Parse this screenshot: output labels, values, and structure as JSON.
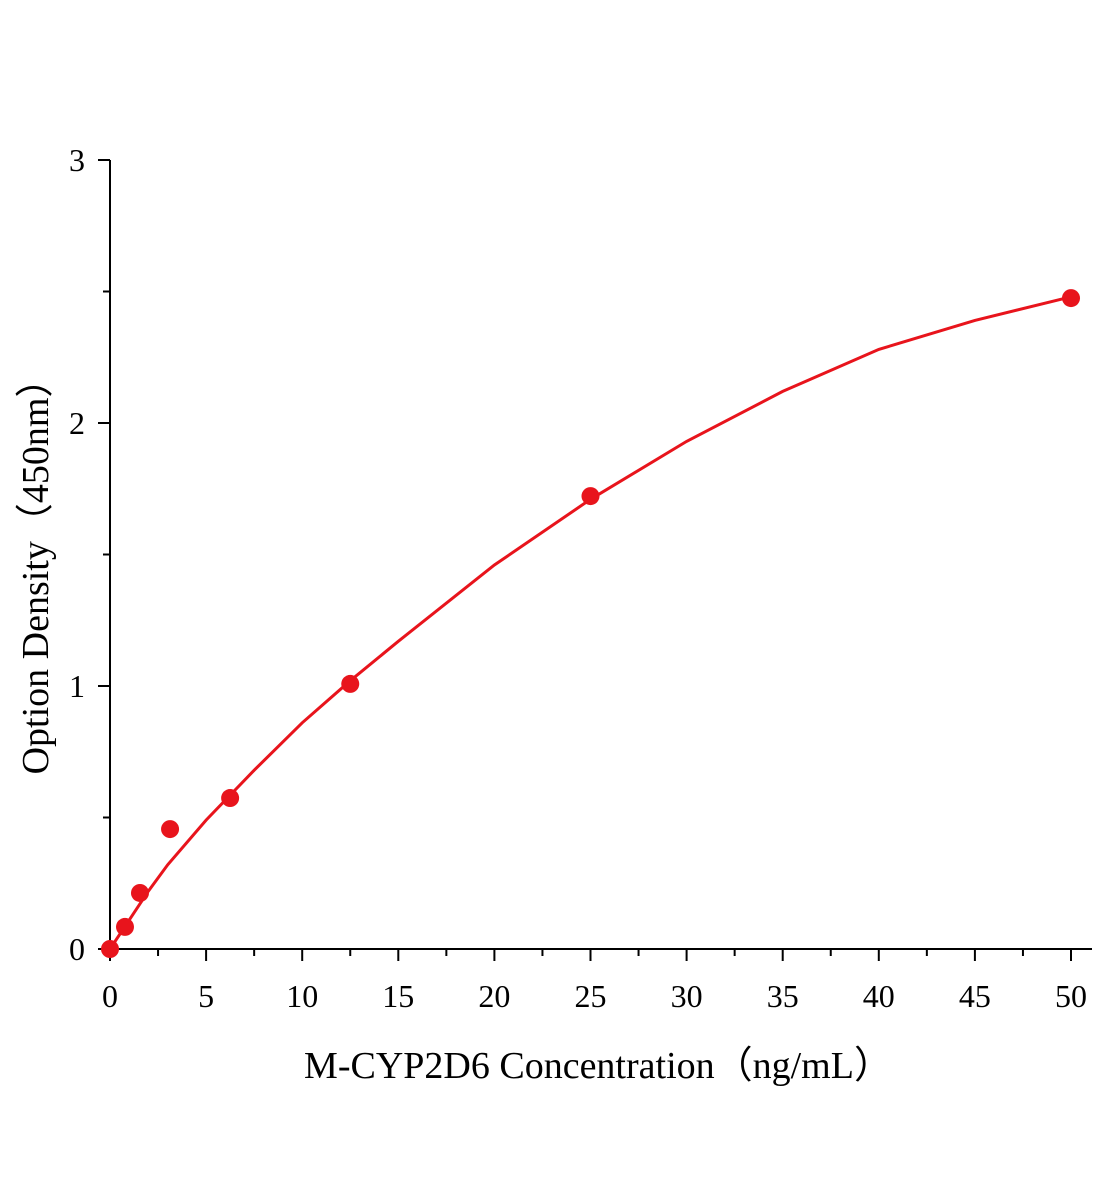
{
  "chart_data": {
    "type": "scatter",
    "x_label": "M-CYP2D6 Concentration（ng/mL）",
    "y_label": "Option Density（450nm）",
    "xlim": [
      0,
      50
    ],
    "ylim": [
      0,
      3
    ],
    "xticks": [
      0,
      5,
      10,
      15,
      20,
      25,
      30,
      35,
      40,
      45,
      50
    ],
    "xminor_ticks": [
      2.5,
      7.5,
      12.5,
      17.5,
      22.5,
      27.5,
      32.5,
      37.5,
      42.5,
      47.5
    ],
    "yticks": [
      0,
      1,
      2,
      3
    ],
    "yminor_ticks": [
      0.5,
      1.5,
      2.5
    ],
    "series": [
      {
        "color": "#e8141c",
        "x": [
          0,
          0.78,
          1.56,
          3.125,
          6.25,
          12.5,
          25,
          50
        ],
        "values": [
          0,
          0.084,
          0.213,
          0.456,
          0.574,
          1.008,
          1.722,
          2.475
        ]
      }
    ],
    "fit": {
      "color": "#e8141c",
      "x": [
        0,
        1,
        2,
        3,
        5,
        7.5,
        10,
        12.5,
        15,
        20,
        25,
        30,
        35,
        40,
        45,
        50
      ],
      "values": [
        0,
        0.11,
        0.22,
        0.32,
        0.49,
        0.68,
        0.86,
        1.02,
        1.17,
        1.46,
        1.71,
        1.93,
        2.12,
        2.28,
        2.39,
        2.48
      ]
    }
  }
}
